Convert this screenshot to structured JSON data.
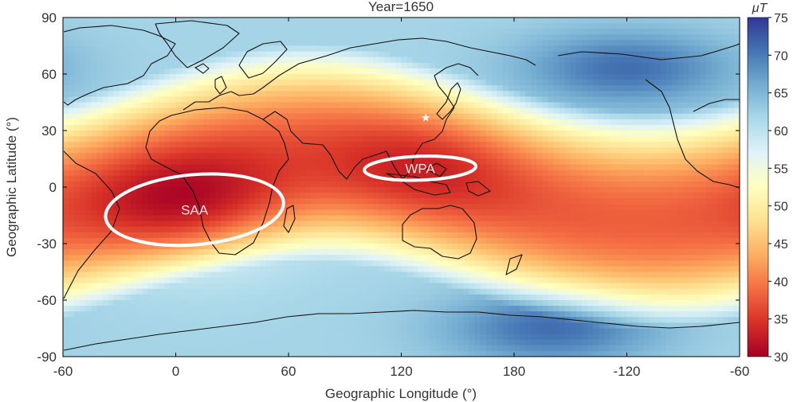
{
  "chart_data": {
    "type": "heatmap",
    "title": "Year=1650",
    "xlabel": "Geographic Longitude (°)",
    "ylabel": "Geographic Latitude (°)",
    "x_ticks": [
      "-60",
      "0",
      "60",
      "120",
      "180",
      "-120",
      "-60"
    ],
    "y_ticks": [
      "90",
      "60",
      "30",
      "0",
      "-30",
      "-60",
      "-90"
    ],
    "xlim": [
      -60,
      300
    ],
    "ylim": [
      -90,
      90
    ],
    "colorbar": {
      "unit": "μT",
      "min": 30,
      "max": 75,
      "ticks": [
        "75",
        "70",
        "65",
        "60",
        "55",
        "50",
        "45",
        "40",
        "35",
        "30"
      ],
      "colors_low_to_high": [
        "#a50026",
        "#d73027",
        "#f46d43",
        "#fdae61",
        "#fee090",
        "#ffffbf",
        "#e0f3f8",
        "#abd9e9",
        "#74add1",
        "#4575b4",
        "#313695"
      ]
    },
    "field_minima": [
      {
        "label": "SAA",
        "lon": 10,
        "lat": -12,
        "value": 30
      },
      {
        "label": "WPA",
        "lon": 130,
        "lat": 10,
        "value": 33
      }
    ],
    "field_maxima": [
      {
        "lon": 240,
        "lat": 63,
        "value": 72
      },
      {
        "lon": 200,
        "lat": -75,
        "value": 71
      }
    ],
    "marker": {
      "symbol": "★",
      "lon": 133,
      "lat": 37
    }
  }
}
